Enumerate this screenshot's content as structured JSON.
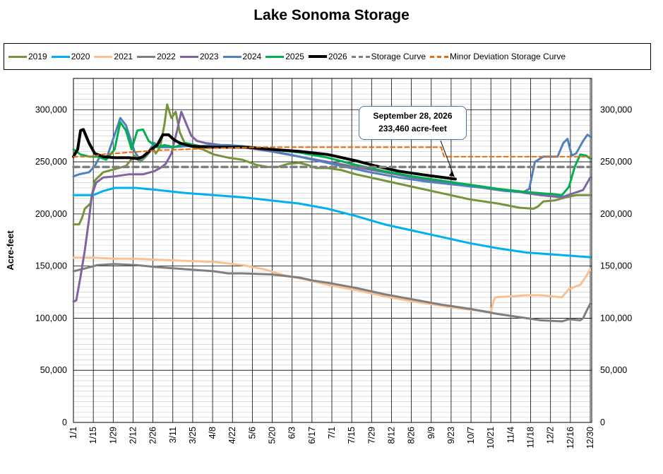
{
  "chart_data": {
    "type": "line",
    "title": "Lake Sonoma Storage",
    "ylabel": "Acre-feet",
    "ylim": [
      0,
      330000
    ],
    "yticks": [
      "0",
      "50,000",
      "100,000",
      "150,000",
      "200,000",
      "250,000",
      "300,000"
    ],
    "ytick_values": [
      0,
      50000,
      100000,
      150000,
      200000,
      250000,
      300000
    ],
    "xticks": [
      "1/1",
      "1/15",
      "1/29",
      "2/12",
      "2/26",
      "3/11",
      "3/25",
      "4/8",
      "4/22",
      "5/6",
      "5/20",
      "6/3",
      "6/17",
      "7/1",
      "7/15",
      "7/29",
      "8/12",
      "8/26",
      "9/9",
      "9/23",
      "10/7",
      "10/21",
      "11/4",
      "11/18",
      "12/2",
      "12/16",
      "12/30"
    ],
    "grid": true,
    "legend_position": "top",
    "annotation": {
      "line1": "September 28, 2026",
      "line2": "233,460 acre-feet",
      "day": 270,
      "value": 233460
    },
    "series": [
      {
        "name": "2019",
        "color": "#77933c",
        "width": 3,
        "dash": "",
        "points": [
          [
            1,
            190000
          ],
          [
            5,
            190000
          ],
          [
            7,
            196000
          ],
          [
            9,
            205000
          ],
          [
            13,
            210000
          ],
          [
            16,
            232000
          ],
          [
            22,
            240000
          ],
          [
            30,
            243000
          ],
          [
            38,
            246000
          ],
          [
            44,
            256000
          ],
          [
            48,
            250000
          ],
          [
            52,
            255000
          ],
          [
            55,
            260000
          ],
          [
            57,
            263000
          ],
          [
            59,
            258000
          ],
          [
            62,
            264000
          ],
          [
            65,
            285000
          ],
          [
            67,
            305000
          ],
          [
            70,
            292000
          ],
          [
            73,
            298000
          ],
          [
            76,
            278000
          ],
          [
            80,
            266000
          ],
          [
            86,
            264000
          ],
          [
            92,
            262000
          ],
          [
            100,
            257000
          ],
          [
            110,
            254000
          ],
          [
            120,
            252000
          ],
          [
            130,
            247000
          ],
          [
            138,
            245000
          ],
          [
            145,
            245000
          ],
          [
            152,
            248000
          ],
          [
            160,
            249000
          ],
          [
            166,
            247000
          ],
          [
            172,
            244000
          ],
          [
            180,
            244000
          ],
          [
            190,
            242000
          ],
          [
            200,
            238000
          ],
          [
            220,
            232000
          ],
          [
            240,
            226000
          ],
          [
            260,
            220000
          ],
          [
            280,
            214000
          ],
          [
            300,
            210000
          ],
          [
            315,
            206000
          ],
          [
            325,
            205000
          ],
          [
            328,
            207000
          ],
          [
            332,
            212000
          ],
          [
            340,
            213000
          ],
          [
            348,
            216000
          ],
          [
            355,
            218000
          ],
          [
            365,
            218000
          ]
        ]
      },
      {
        "name": "2020",
        "color": "#00b0f0",
        "width": 3,
        "dash": "",
        "points": [
          [
            1,
            218000
          ],
          [
            15,
            218000
          ],
          [
            22,
            222000
          ],
          [
            30,
            225000
          ],
          [
            45,
            225000
          ],
          [
            60,
            223000
          ],
          [
            80,
            220000
          ],
          [
            100,
            218000
          ],
          [
            120,
            216000
          ],
          [
            140,
            213000
          ],
          [
            160,
            210000
          ],
          [
            180,
            205000
          ],
          [
            200,
            198000
          ],
          [
            220,
            190000
          ],
          [
            240,
            184000
          ],
          [
            260,
            178000
          ],
          [
            280,
            172000
          ],
          [
            300,
            167000
          ],
          [
            320,
            163000
          ],
          [
            340,
            161000
          ],
          [
            365,
            158500
          ]
        ]
      },
      {
        "name": "2021",
        "color": "#fac090",
        "width": 3,
        "dash": "",
        "points": [
          [
            1,
            158000
          ],
          [
            15,
            158000
          ],
          [
            30,
            157000
          ],
          [
            45,
            157000
          ],
          [
            60,
            156000
          ],
          [
            80,
            155000
          ],
          [
            100,
            154000
          ],
          [
            120,
            151000
          ],
          [
            135,
            147000
          ],
          [
            150,
            141000
          ],
          [
            165,
            137000
          ],
          [
            180,
            132000
          ],
          [
            200,
            127000
          ],
          [
            220,
            121000
          ],
          [
            240,
            116000
          ],
          [
            260,
            112000
          ],
          [
            275,
            109000
          ],
          [
            295,
            106000
          ],
          [
            297,
            117000
          ],
          [
            298,
            120000
          ],
          [
            310,
            121000
          ],
          [
            320,
            122000
          ],
          [
            330,
            122000
          ],
          [
            345,
            120000
          ],
          [
            350,
            128000
          ],
          [
            358,
            132000
          ],
          [
            362,
            140000
          ],
          [
            365,
            147000
          ]
        ]
      },
      {
        "name": "2022",
        "color": "#7f7f7f",
        "width": 3,
        "dash": "",
        "points": [
          [
            1,
            145000
          ],
          [
            10,
            148000
          ],
          [
            18,
            151000
          ],
          [
            30,
            152000
          ],
          [
            45,
            151000
          ],
          [
            60,
            149000
          ],
          [
            80,
            147000
          ],
          [
            100,
            145000
          ],
          [
            110,
            143000
          ],
          [
            120,
            143000
          ],
          [
            140,
            142000
          ],
          [
            160,
            139000
          ],
          [
            170,
            136000
          ],
          [
            180,
            134000
          ],
          [
            200,
            129000
          ],
          [
            220,
            123000
          ],
          [
            240,
            118000
          ],
          [
            260,
            113000
          ],
          [
            280,
            109000
          ],
          [
            300,
            104000
          ],
          [
            320,
            100000
          ],
          [
            330,
            98000
          ],
          [
            345,
            97000
          ],
          [
            350,
            99000
          ],
          [
            358,
            98000
          ],
          [
            360,
            100000
          ],
          [
            362,
            106000
          ],
          [
            365,
            114000
          ]
        ]
      },
      {
        "name": "2023",
        "color": "#8064a2",
        "width": 3,
        "dash": "",
        "points": [
          [
            1,
            116000
          ],
          [
            3,
            117000
          ],
          [
            6,
            140000
          ],
          [
            9,
            165000
          ],
          [
            12,
            195000
          ],
          [
            14,
            218000
          ],
          [
            17,
            230000
          ],
          [
            22,
            235000
          ],
          [
            30,
            236000
          ],
          [
            40,
            238000
          ],
          [
            50,
            238000
          ],
          [
            58,
            241000
          ],
          [
            62,
            244000
          ],
          [
            66,
            248000
          ],
          [
            70,
            258000
          ],
          [
            74,
            280000
          ],
          [
            77,
            298000
          ],
          [
            80,
            288000
          ],
          [
            84,
            275000
          ],
          [
            88,
            270000
          ],
          [
            94,
            268000
          ],
          [
            100,
            267000
          ],
          [
            110,
            265000
          ],
          [
            120,
            264000
          ],
          [
            130,
            262000
          ],
          [
            140,
            260000
          ],
          [
            160,
            255000
          ],
          [
            180,
            250000
          ],
          [
            200,
            245000
          ],
          [
            220,
            240000
          ],
          [
            240,
            235000
          ],
          [
            260,
            231000
          ],
          [
            280,
            227000
          ],
          [
            300,
            223000
          ],
          [
            315,
            221000
          ],
          [
            330,
            218000
          ],
          [
            345,
            216000
          ],
          [
            360,
            223000
          ],
          [
            365,
            235000
          ]
        ]
      },
      {
        "name": "2024",
        "color": "#4f81bd",
        "width": 3,
        "dash": "",
        "points": [
          [
            1,
            236000
          ],
          [
            5,
            238000
          ],
          [
            12,
            240000
          ],
          [
            16,
            246000
          ],
          [
            20,
            256000
          ],
          [
            24,
            252000
          ],
          [
            28,
            268000
          ],
          [
            34,
            292000
          ],
          [
            38,
            285000
          ],
          [
            44,
            260000
          ],
          [
            48,
            252000
          ],
          [
            52,
            256000
          ],
          [
            58,
            268000
          ],
          [
            62,
            264000
          ],
          [
            70,
            264000
          ],
          [
            80,
            265000
          ],
          [
            90,
            265000
          ],
          [
            100,
            266000
          ],
          [
            110,
            266000
          ],
          [
            120,
            265000
          ],
          [
            130,
            263000
          ],
          [
            150,
            258000
          ],
          [
            170,
            252000
          ],
          [
            190,
            246000
          ],
          [
            210,
            240000
          ],
          [
            230,
            235000
          ],
          [
            250,
            231000
          ],
          [
            270,
            228000
          ],
          [
            290,
            225000
          ],
          [
            305,
            222000
          ],
          [
            318,
            221000
          ],
          [
            322,
            224000
          ],
          [
            326,
            250000
          ],
          [
            332,
            255000
          ],
          [
            342,
            255000
          ],
          [
            346,
            268000
          ],
          [
            349,
            272000
          ],
          [
            352,
            256000
          ],
          [
            355,
            258000
          ],
          [
            360,
            270000
          ],
          [
            363,
            276000
          ],
          [
            365,
            274000
          ]
        ]
      },
      {
        "name": "2025",
        "color": "#00b050",
        "width": 3,
        "dash": "",
        "points": [
          [
            1,
            262000
          ],
          [
            6,
            257000
          ],
          [
            12,
            255000
          ],
          [
            18,
            255000
          ],
          [
            24,
            252000
          ],
          [
            30,
            262000
          ],
          [
            34,
            288000
          ],
          [
            38,
            280000
          ],
          [
            42,
            262000
          ],
          [
            46,
            280000
          ],
          [
            50,
            281000
          ],
          [
            54,
            270000
          ],
          [
            60,
            264000
          ],
          [
            65,
            266000
          ],
          [
            72,
            264000
          ],
          [
            80,
            268000
          ],
          [
            90,
            265000
          ],
          [
            100,
            264000
          ],
          [
            110,
            264000
          ],
          [
            120,
            264000
          ],
          [
            140,
            262000
          ],
          [
            160,
            259000
          ],
          [
            180,
            254000
          ],
          [
            200,
            247000
          ],
          [
            220,
            241000
          ],
          [
            240,
            236000
          ],
          [
            260,
            232000
          ],
          [
            280,
            228000
          ],
          [
            300,
            224000
          ],
          [
            320,
            221000
          ],
          [
            338,
            219000
          ],
          [
            345,
            218000
          ],
          [
            350,
            226000
          ],
          [
            354,
            245000
          ],
          [
            358,
            257000
          ],
          [
            362,
            256000
          ],
          [
            365,
            253000
          ]
        ]
      },
      {
        "name": "2026",
        "color": "#000000",
        "width": 4,
        "dash": "",
        "points": [
          [
            1,
            255000
          ],
          [
            4,
            262000
          ],
          [
            6,
            280000
          ],
          [
            8,
            281000
          ],
          [
            12,
            268000
          ],
          [
            16,
            258000
          ],
          [
            22,
            255000
          ],
          [
            30,
            254000
          ],
          [
            40,
            254000
          ],
          [
            46,
            253000
          ],
          [
            50,
            255000
          ],
          [
            56,
            262000
          ],
          [
            60,
            266000
          ],
          [
            64,
            276000
          ],
          [
            68,
            276000
          ],
          [
            72,
            271000
          ],
          [
            76,
            268000
          ],
          [
            84,
            265000
          ],
          [
            96,
            264000
          ],
          [
            110,
            264000
          ],
          [
            124,
            264000
          ],
          [
            140,
            262000
          ],
          [
            160,
            260000
          ],
          [
            180,
            257000
          ],
          [
            200,
            251000
          ],
          [
            214,
            246000
          ],
          [
            230,
            241000
          ],
          [
            250,
            237000
          ],
          [
            270,
            233460
          ]
        ]
      },
      {
        "name": "Storage Curve",
        "color": "#7f7f7f",
        "width": 3.5,
        "dash": "8,6",
        "points": [
          [
            1,
            245000
          ],
          [
            365,
            245000
          ]
        ]
      },
      {
        "name": "Minor Deviation Storage Curve",
        "color": "#e46c0a",
        "width": 2,
        "dash": "6,4",
        "points": [
          [
            1,
            255000
          ],
          [
            15,
            255000
          ],
          [
            20,
            257000
          ],
          [
            60,
            261000
          ],
          [
            100,
            263000
          ],
          [
            130,
            264000
          ],
          [
            260,
            264000
          ],
          [
            262,
            255000
          ],
          [
            365,
            255000
          ]
        ]
      }
    ]
  }
}
